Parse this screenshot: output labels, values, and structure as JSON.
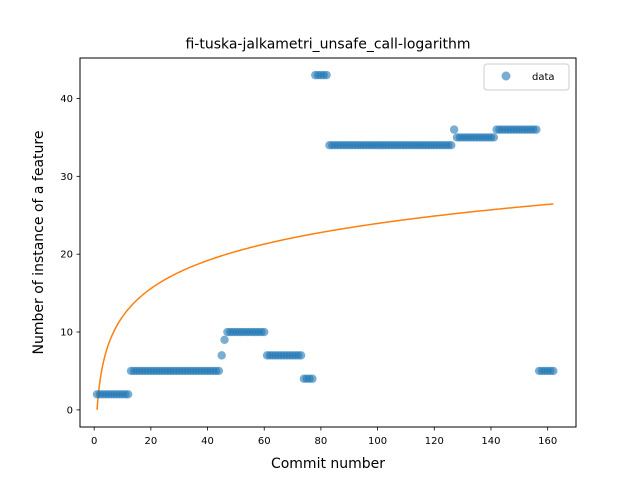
{
  "chart_data": {
    "type": "scatter",
    "title": "fi-tuska-jalkametri_unsafe_call-logarithm",
    "xlabel": "Commit number",
    "ylabel": "Number of instance of a feature",
    "xlim": [
      -5,
      170
    ],
    "ylim": [
      -2.2,
      45.2
    ],
    "xticks": [
      0,
      20,
      40,
      60,
      80,
      100,
      120,
      140,
      160
    ],
    "yticks": [
      0,
      10,
      20,
      30,
      40
    ],
    "legend": {
      "position": "top-right",
      "entries": [
        "data"
      ]
    },
    "grid": false,
    "colors": {
      "data": "#1f77b4",
      "fit": "#ff7f0e"
    },
    "series": [
      {
        "name": "data",
        "kind": "scatter",
        "segments": [
          {
            "x_start": 1,
            "x_end": 12,
            "y": 2
          },
          {
            "x_start": 13,
            "x_end": 44,
            "y": 5
          },
          {
            "x_start": 45,
            "x_end": 45,
            "y": 7
          },
          {
            "x_start": 46,
            "x_end": 46,
            "y": 9
          },
          {
            "x_start": 47,
            "x_end": 60,
            "y": 10
          },
          {
            "x_start": 61,
            "x_end": 73,
            "y": 7
          },
          {
            "x_start": 74,
            "x_end": 77,
            "y": 4
          },
          {
            "x_start": 78,
            "x_end": 82,
            "y": 43
          },
          {
            "x_start": 83,
            "x_end": 126,
            "y": 34
          },
          {
            "x_start": 127,
            "x_end": 127,
            "y": 36
          },
          {
            "x_start": 128,
            "x_end": 141,
            "y": 35
          },
          {
            "x_start": 142,
            "x_end": 156,
            "y": 36
          },
          {
            "x_start": 157,
            "x_end": 162,
            "y": 5
          }
        ]
      },
      {
        "kind": "line",
        "function": "logarithmic",
        "x_range": [
          1,
          162
        ],
        "a": 5.2,
        "b": 0
      }
    ]
  }
}
